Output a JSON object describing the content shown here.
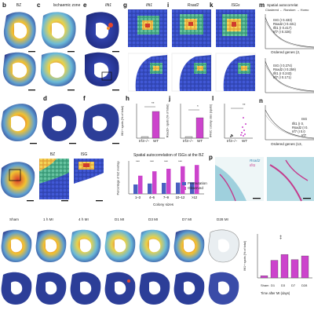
{
  "labels": {
    "b": "b",
    "c": "c",
    "d": "d",
    "e": "e",
    "f": "f",
    "g": "g",
    "h": "h",
    "i": "i",
    "j": "j",
    "k": "k",
    "l": "l",
    "m": "m",
    "n": "n",
    "p": "p"
  },
  "headers": {
    "b": "BZ",
    "c": "Ischaemic zone",
    "e": "Ifit1",
    "g": "Ifit1",
    "i": "Rsad2",
    "k": "ISGs",
    "bz_inset": "BZ",
    "isg_inset": "ISG"
  },
  "panel_m": {
    "title": "Spatial autocorrelat",
    "legend_line": "Clustered ← Random → Homo",
    "ylabel_top": "IFIT1 IDR",
    "ylabel_top_sub": "Moran's I test statistic",
    "ylabel_bottom": "IFIT1 IDR",
    "ylabel_bottom_sub": "Moran's I test statistic",
    "xlabel": "Ordered genes (2,",
    "top_genes": [
      "ISG (I 0.433)",
      "Rsad2 (I 0.431)",
      "Ifit1 (I 0.417)",
      "Irf7 (I 0.326)"
    ],
    "bottom_genes": [
      "ISG (I 0.274)",
      "Rsad2 (I 0.259)",
      "Ifit1 (I 0.243)",
      "Irf7 (I 0.171)"
    ]
  },
  "panel_n": {
    "ylabel": "IRF3 ODM",
    "ylabel_sub": "Moran's I test statistic",
    "xlabel": "Ordered genes (13,",
    "genes": [
      "ISG",
      "Ifit1 (I 0.",
      "Rsad2 (I 0.",
      "Irf7 (I 0.0",
      "Irf7"
    ]
  },
  "panel_h": {
    "ylabel": "Ifit1+ spots (% of total)",
    "sig": "**",
    "groups": [
      "Irf3−/−",
      "WT"
    ],
    "ymax": 6
  },
  "panel_j": {
    "ylabel": "Rsad2+ spots (% of total)",
    "sig": "*",
    "groups": [
      "Irf3−/−",
      "WT"
    ],
    "ymax": 6
  },
  "panel_l": {
    "ylabel": "IFNIC colony size (spots)",
    "sig": "**",
    "groups": [
      "Irf3−/−",
      "WT"
    ],
    "ymax": 75
  },
  "spatial_chart": {
    "title": "Spatial autocorrelation of ISGs at the BZ",
    "ylabel": "Percentage of BZ overlap",
    "xlabel": "Colony sizes",
    "legend": [
      "Permutation",
      "Observed"
    ],
    "permutation_color": "#4a5fc1",
    "observed_color": "#cc44cc",
    "sig": [
      "***",
      "***",
      "***",
      "***"
    ]
  },
  "chart_data": [
    {
      "type": "bar",
      "title": "",
      "ylabel": "Ifit1+ spots (% of total)",
      "categories": [
        "Irf3−/−",
        "WT"
      ],
      "values": [
        0.3,
        4.6
      ],
      "ylim": [
        0,
        6
      ]
    },
    {
      "type": "bar",
      "title": "",
      "ylabel": "Rsad2+ spots (% of total)",
      "categories": [
        "Irf3−/−",
        "WT"
      ],
      "values": [
        0.2,
        3.4
      ],
      "ylim": [
        0,
        6
      ]
    },
    {
      "type": "scatter",
      "title": "",
      "ylabel": "IFNIC colony size (spots)",
      "categories": [
        "Irf3−/−",
        "WT"
      ],
      "values": [
        3,
        22
      ],
      "ylim": [
        0,
        75
      ]
    },
    {
      "type": "bar",
      "title": "Spatial autocorrelation of ISGs at the BZ",
      "xlabel": "Colony sizes",
      "ylabel": "Percentage of BZ overlap",
      "categories": [
        "1–3",
        "4–6",
        "7–9",
        "10–12",
        ">12"
      ],
      "series": [
        {
          "name": "Permutation",
          "values": [
            30,
            33,
            35,
            36,
            37
          ]
        },
        {
          "name": "Observed",
          "values": [
            58,
            72,
            80,
            88,
            92
          ]
        }
      ],
      "ylim": [
        0,
        100
      ]
    },
    {
      "type": "bar",
      "title": "",
      "xlabel": "Time after MI (days)",
      "ylabel": "Ifit1+ spots (% of total)",
      "categories": [
        "Sham",
        "D1",
        "D3",
        "D7",
        "D28"
      ],
      "values": [
        0.3,
        2.4,
        3.2,
        2.5,
        3.0
      ],
      "ylim": [
        0,
        6
      ],
      "sig": "‡"
    }
  ],
  "timeline": {
    "labels": [
      "Sham",
      "1 h MI",
      "4 h MI",
      "D1 MI",
      "D3 MI",
      "D7 MI",
      "D28 MI"
    ],
    "chart_ylabel": "Ifit1+ spots (% of total)",
    "chart_xlabel": "Time after MI (days)"
  },
  "panel_p": {
    "legend_1": "Rsad2",
    "legend_2": "Ifit1"
  }
}
